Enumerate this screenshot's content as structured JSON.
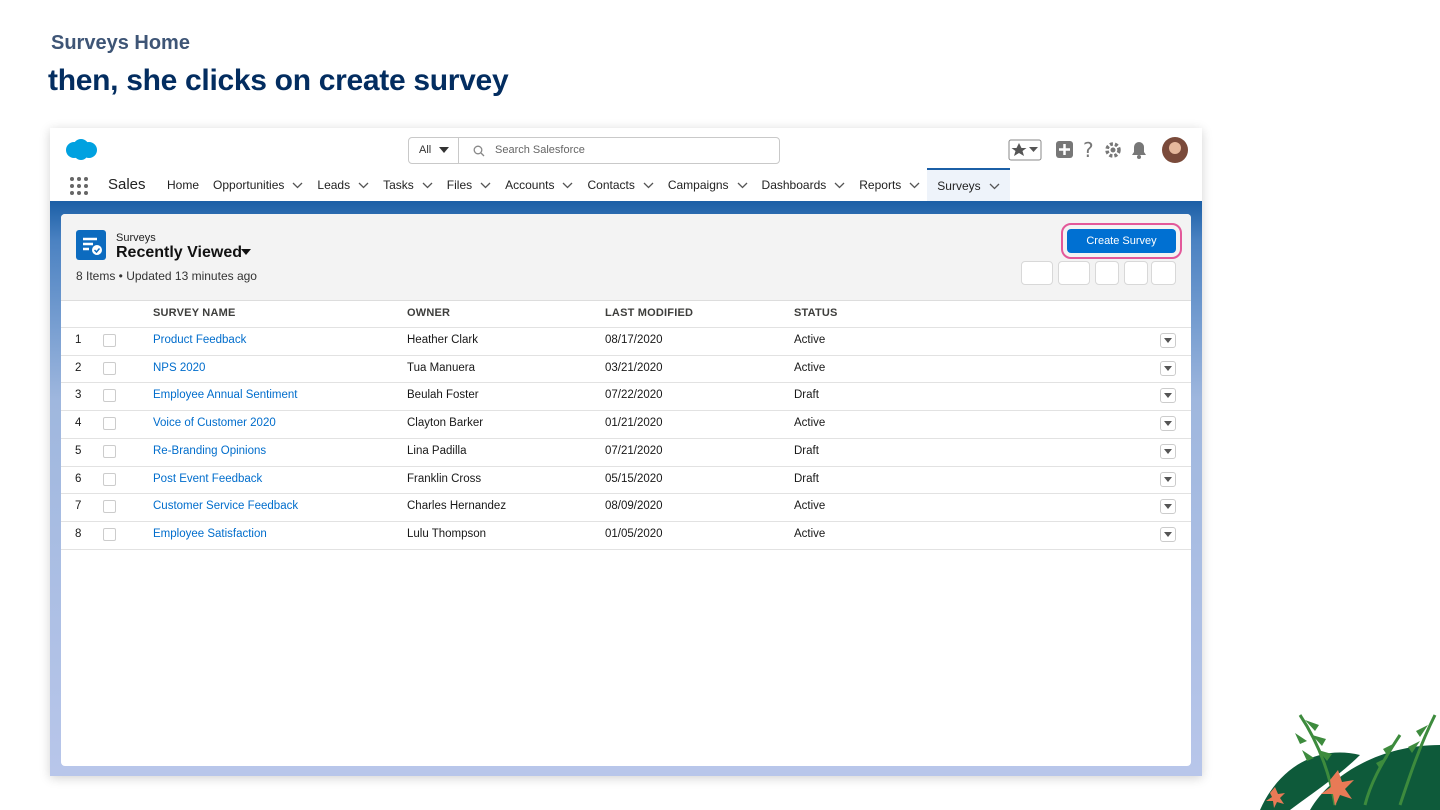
{
  "slide": {
    "eyebrow": "Surveys Home",
    "heading": "then, she clicks on create survey"
  },
  "app": {
    "search_scope": "All",
    "search_placeholder": "Search Salesforce",
    "app_name": "Sales",
    "nav": [
      {
        "label": "Home"
      },
      {
        "label": "Opportunities",
        "menu": true
      },
      {
        "label": "Leads",
        "menu": true
      },
      {
        "label": "Tasks",
        "menu": true
      },
      {
        "label": "Files",
        "menu": true
      },
      {
        "label": "Accounts",
        "menu": true
      },
      {
        "label": "Contacts",
        "menu": true
      },
      {
        "label": "Campaigns",
        "menu": true
      },
      {
        "label": "Dashboards",
        "menu": true
      },
      {
        "label": "Reports",
        "menu": true
      },
      {
        "label": "Surveys",
        "menu": true,
        "active": true
      }
    ]
  },
  "list": {
    "object": "Surveys",
    "view": "Recently Viewed",
    "meta": "8 Items • Updated 13 minutes ago",
    "button": "Create Survey",
    "columns": [
      "SURVEY NAME",
      "OWNER",
      "LAST MODIFIED",
      "STATUS"
    ],
    "rows": [
      [
        1,
        "Product Feedback",
        "Heather Clark",
        "08/17/2020",
        "Active"
      ],
      [
        2,
        "NPS 2020",
        "Tua Manuera",
        "03/21/2020",
        "Active"
      ],
      [
        3,
        "Employee Annual Sentiment",
        "Beulah Foster",
        "07/22/2020",
        "Draft"
      ],
      [
        4,
        "Voice of Customer 2020",
        "Clayton Barker",
        "01/21/2020",
        "Active"
      ],
      [
        5,
        "Re-Branding Opinions",
        "Lina Padilla",
        "07/21/2020",
        "Draft"
      ],
      [
        6,
        "Post Event Feedback",
        "Franklin Cross",
        "05/15/2020",
        "Draft"
      ],
      [
        7,
        "Customer Service Feedback",
        "Charles Hernandez",
        "08/09/2020",
        "Active"
      ],
      [
        8,
        "Employee Satisfaction",
        "Lulu Thompson",
        "01/05/2020",
        "Active"
      ]
    ]
  }
}
